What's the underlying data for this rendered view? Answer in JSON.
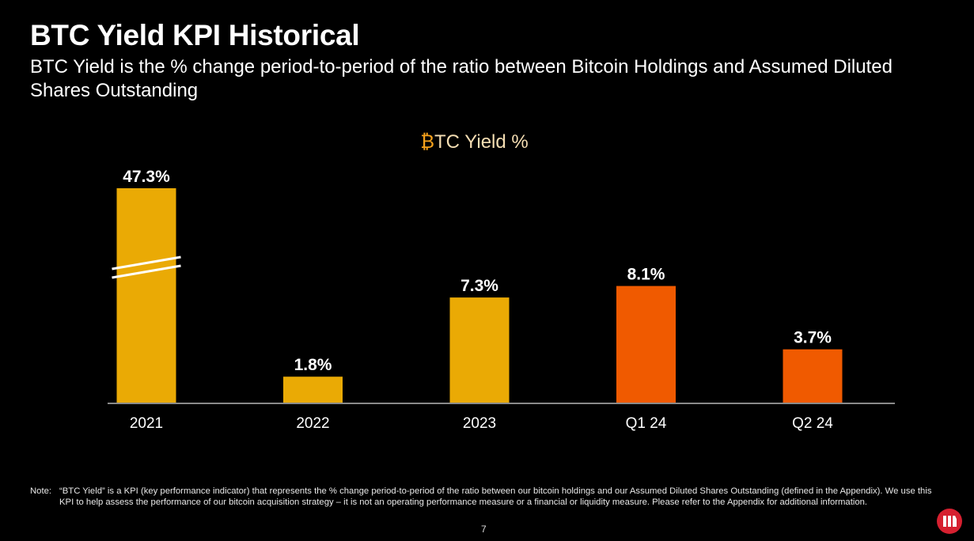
{
  "header": {
    "title": "BTC Yield KPI Historical",
    "subtitle": "BTC Yield is the % change period-to-period of the ratio between Bitcoin Holdings and Assumed Diluted Shares Outstanding"
  },
  "chart_data": {
    "type": "bar",
    "title_symbol": "₿",
    "title_rest": "TC Yield %",
    "title": "₿TC Yield %",
    "categories": [
      "2021",
      "2022",
      "2023",
      "Q1 24",
      "Q2 24"
    ],
    "values": [
      47.3,
      1.8,
      7.3,
      8.1,
      3.7
    ],
    "labels": [
      "47.3%",
      "1.8%",
      "7.3%",
      "8.1%",
      "3.7%"
    ],
    "bar_colors": [
      "#EAAA05",
      "#EAAA05",
      "#EAAA05",
      "#F05A00",
      "#F05A00"
    ],
    "axis_break_on": "2021",
    "xlabel": "",
    "ylabel": "",
    "y_axis_shown": false,
    "grid": false,
    "legend": "none"
  },
  "footer": {
    "note_label": "Note:",
    "note_text": "“BTC Yield” is a KPI (key performance indicator) that represents the % change period-to-period of the ratio between our bitcoin holdings and our Assumed Diluted Shares Outstanding (defined in the Appendix).  We use this KPI to help assess the performance of our bitcoin acquisition strategy – it is not an operating performance measure or a financial or liquidity measure. Please refer to the Appendix for additional information.",
    "page_number": "7"
  },
  "colors": {
    "background": "#000000",
    "btc_yellow": "#EAAA05",
    "orange": "#F05A00",
    "logo_red": "#D62030"
  }
}
